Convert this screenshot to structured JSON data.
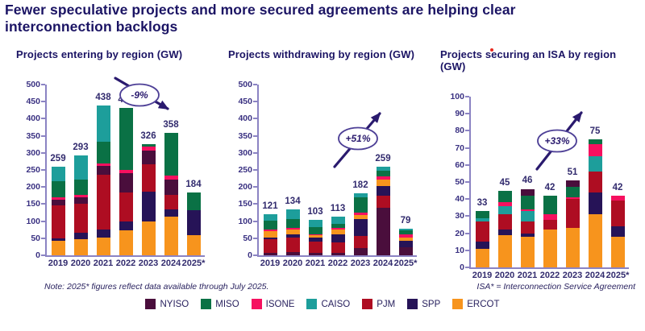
{
  "page": {
    "title": "Fewer speculative projects and more secured agreements are helping clear interconnection backlogs",
    "note_left": "Note: 2025* figures reflect data available through July 2025.",
    "note_right": "ISA* = Interconnection Service Agreement",
    "legend_order": [
      "NYISO",
      "MISO",
      "ISONE",
      "CAISO",
      "PJM",
      "SPP",
      "ERCOT"
    ],
    "colors": {
      "NYISO": "#4a0e3c",
      "MISO": "#0a7145",
      "ISONE": "#f6105f",
      "CAISO": "#1d9e9b",
      "PJM": "#ae0d22",
      "SPP": "#261357",
      "ERCOT": "#f7941d"
    },
    "accent_text_color": "#1b1464",
    "axis_color": "#8b83c3",
    "annotation_color": "#2a1a6e"
  },
  "chart_data": [
    {
      "type": "bar",
      "stacked": true,
      "title": "Projects entering by region (GW)",
      "ylabel": "GW",
      "ylim": [
        0,
        500
      ],
      "ystep": 50,
      "grid": false,
      "legend_position": "bottom",
      "categories": [
        "2019",
        "2020",
        "2021",
        "2022",
        "2023",
        "2024",
        "2025*"
      ],
      "totals": [
        259,
        293,
        438,
        432,
        326,
        358,
        184
      ],
      "stack_order_bottom_up": [
        "ERCOT",
        "SPP",
        "PJM",
        "NYISO",
        "ISONE",
        "MISO",
        "CAISO"
      ],
      "series": [
        {
          "name": "ERCOT",
          "values": [
            42,
            47,
            52,
            74,
            98,
            113,
            58
          ]
        },
        {
          "name": "SPP",
          "values": [
            8,
            20,
            23,
            25,
            88,
            21,
            75
          ]
        },
        {
          "name": "PJM",
          "values": [
            97,
            85,
            160,
            86,
            80,
            44,
            0
          ]
        },
        {
          "name": "NYISO",
          "values": [
            16,
            18,
            27,
            55,
            40,
            43,
            0
          ]
        },
        {
          "name": "ISONE",
          "values": [
            7,
            7,
            8,
            10,
            12,
            12,
            0
          ]
        },
        {
          "name": "MISO",
          "values": [
            46,
            45,
            62,
            182,
            8,
            125,
            51
          ]
        },
        {
          "name": "CAISO",
          "values": [
            43,
            71,
            106,
            0,
            0,
            0,
            0
          ]
        }
      ],
      "annotation": {
        "label": "-9%",
        "direction": "down-right",
        "oval": [
          115,
          47
        ],
        "arrow": [
          85,
          26,
          150,
          64
        ]
      }
    },
    {
      "type": "bar",
      "stacked": true,
      "title": "Projects withdrawing by region (GW)",
      "ylabel": "GW",
      "ylim": [
        0,
        500
      ],
      "ystep": 50,
      "grid": false,
      "legend_position": "bottom",
      "categories": [
        "2019",
        "2020",
        "2021",
        "2022",
        "2023",
        "2024",
        "2025*"
      ],
      "totals": [
        121,
        134,
        103,
        113,
        182,
        259,
        79
      ],
      "stack_order_bottom_up": [
        "NYISO",
        "PJM",
        "SPP",
        "ERCOT",
        "ISONE",
        "MISO",
        "CAISO"
      ],
      "series": [
        {
          "name": "NYISO",
          "values": [
            8,
            10,
            8,
            6,
            22,
            140,
            23
          ]
        },
        {
          "name": "PJM",
          "values": [
            40,
            43,
            33,
            31,
            35,
            34,
            0
          ]
        },
        {
          "name": "SPP",
          "values": [
            3,
            9,
            12,
            25,
            50,
            28,
            20
          ]
        },
        {
          "name": "ERCOT",
          "values": [
            19,
            14,
            5,
            14,
            12,
            19,
            10
          ]
        },
        {
          "name": "ISONE",
          "values": [
            5,
            5,
            4,
            5,
            5,
            11,
            8
          ]
        },
        {
          "name": "MISO",
          "values": [
            26,
            26,
            21,
            12,
            45,
            15,
            13
          ]
        },
        {
          "name": "CAISO",
          "values": [
            20,
            27,
            20,
            20,
            13,
            12,
            5
          ]
        }
      ],
      "annotation": {
        "label": "+51%",
        "direction": "up-right",
        "oval": [
          123,
          101
        ],
        "arrow": [
          94,
          136,
          150,
          70
        ]
      }
    },
    {
      "type": "bar",
      "stacked": true,
      "title": "Projects securing an ISA by region (GW)",
      "ylabel": "GW",
      "ylim": [
        0,
        100
      ],
      "ystep": 10,
      "grid": false,
      "legend_position": "bottom",
      "categories": [
        "2019",
        "2020",
        "2021",
        "2022",
        "2023",
        "2024",
        "2025*"
      ],
      "totals": [
        33,
        45,
        46,
        42,
        51,
        75,
        42
      ],
      "stack_order_bottom_up": [
        "ERCOT",
        "SPP",
        "PJM",
        "CAISO",
        "ISONE",
        "MISO",
        "NYISO"
      ],
      "series": [
        {
          "name": "ERCOT",
          "values": [
            11,
            19,
            18,
            22,
            23,
            31,
            18
          ]
        },
        {
          "name": "SPP",
          "values": [
            4,
            3,
            2,
            0,
            0,
            13,
            6
          ]
        },
        {
          "name": "PJM",
          "values": [
            12,
            9,
            7,
            6,
            17,
            12,
            15
          ]
        },
        {
          "name": "CAISO",
          "values": [
            2,
            5,
            6,
            0,
            0,
            9,
            0
          ]
        },
        {
          "name": "ISONE",
          "values": [
            0,
            2,
            1,
            3,
            1,
            7,
            3
          ]
        },
        {
          "name": "MISO",
          "values": [
            4,
            7,
            8,
            11,
            6,
            3,
            0
          ]
        },
        {
          "name": "NYISO",
          "values": [
            0,
            0,
            4,
            0,
            4,
            0,
            0
          ]
        }
      ],
      "annotation": {
        "label": "+33%",
        "direction": "up-right",
        "oval": [
          107,
          89
        ],
        "arrow": [
          82,
          124,
          137,
          54
        ]
      }
    }
  ]
}
